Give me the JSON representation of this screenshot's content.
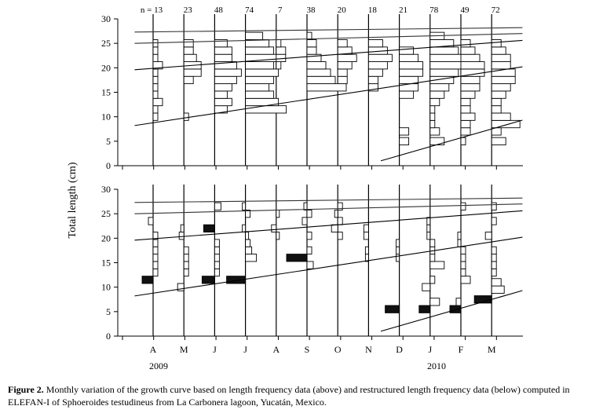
{
  "chart_data": [
    {
      "id": "top",
      "type": "bar",
      "subtype": "length-frequency histograms with ELEFAN growth curves",
      "description_key": "length frequency data",
      "ylabel": "Total length (cm)",
      "ylim": [
        0,
        30
      ],
      "yticks": [
        "0",
        "5",
        "10",
        "15",
        "20",
        "25",
        "30"
      ],
      "months": [
        "A",
        "M",
        "J",
        "J",
        "A",
        "S",
        "O",
        "N",
        "D",
        "J",
        "F",
        "M"
      ],
      "sample_sizes": [
        "n = 13",
        "23",
        "48",
        "74",
        "7",
        "38",
        "20",
        "18",
        "21",
        "78",
        "49",
        "72"
      ],
      "bin_width_cm": 1.5,
      "bars": [
        [
          [
            10,
            0.15
          ],
          [
            11.5,
            0.15
          ],
          [
            13,
            0.3
          ],
          [
            14.5,
            0.15
          ],
          [
            16,
            0.15
          ],
          [
            17.5,
            0.15
          ],
          [
            19,
            0.15
          ],
          [
            20.5,
            0.3
          ],
          [
            22,
            0.15
          ],
          [
            23.5,
            0.15
          ],
          [
            25,
            0.15
          ]
        ],
        [
          [
            10,
            0.15
          ],
          [
            17.5,
            0.3
          ],
          [
            19,
            0.55
          ],
          [
            20.5,
            0.55
          ],
          [
            22,
            0.4
          ],
          [
            23.5,
            0.3
          ],
          [
            25,
            0.3
          ]
        ],
        [
          [
            11.5,
            0.4
          ],
          [
            13,
            0.55
          ],
          [
            14.5,
            0.4
          ],
          [
            16,
            0.55
          ],
          [
            17.5,
            0.7
          ],
          [
            19,
            0.85
          ],
          [
            20.5,
            0.7
          ],
          [
            22,
            0.55
          ],
          [
            23.5,
            0.55
          ],
          [
            25,
            0.4
          ]
        ],
        [
          [
            11.5,
            1.3
          ],
          [
            13,
            1.05
          ],
          [
            14.5,
            0.9
          ],
          [
            16,
            0.75
          ],
          [
            17.5,
            0.9
          ],
          [
            19,
            1.05
          ],
          [
            20.5,
            0.9
          ],
          [
            22,
            1.05
          ],
          [
            23.5,
            0.9
          ],
          [
            25,
            0.75
          ],
          [
            26.5,
            0.55
          ]
        ],
        [
          [
            20.5,
            0.15
          ],
          [
            22,
            0.3
          ],
          [
            23.5,
            0.3
          ],
          [
            25,
            0.15
          ]
        ],
        [
          [
            16,
            1.25
          ],
          [
            17.5,
            0.9
          ],
          [
            19,
            0.75
          ],
          [
            20.5,
            0.6
          ],
          [
            22,
            0.45
          ],
          [
            23.5,
            0.3
          ],
          [
            25,
            0.3
          ],
          [
            26.5,
            0.15
          ]
        ],
        [
          [
            17.5,
            0.3
          ],
          [
            19,
            0.3
          ],
          [
            20.5,
            0.45
          ],
          [
            22,
            0.6
          ],
          [
            23.5,
            0.45
          ],
          [
            25,
            0.3
          ]
        ],
        [
          [
            16,
            0.3
          ],
          [
            17.5,
            0.3
          ],
          [
            19,
            0.45
          ],
          [
            20.5,
            0.6
          ],
          [
            22,
            0.75
          ],
          [
            23.5,
            0.6
          ],
          [
            25,
            0.45
          ]
        ],
        [
          [
            5,
            0.3
          ],
          [
            7,
            0.3
          ],
          [
            14.5,
            0.45
          ],
          [
            16,
            0.6
          ],
          [
            17.5,
            0.6
          ],
          [
            19,
            0.75
          ],
          [
            20.5,
            0.75
          ],
          [
            22,
            0.6
          ],
          [
            23.5,
            0.45
          ]
        ],
        [
          [
            5,
            0.45
          ],
          [
            7,
            0.3
          ],
          [
            8.5,
            0.15
          ],
          [
            10,
            0.15
          ],
          [
            11.5,
            0.15
          ],
          [
            13,
            0.3
          ],
          [
            14.5,
            0.45
          ],
          [
            16,
            0.6
          ],
          [
            17.5,
            0.75
          ],
          [
            19,
            0.9
          ],
          [
            20.5,
            1.05
          ],
          [
            22,
            1.05
          ],
          [
            23.5,
            0.9
          ],
          [
            25,
            0.75
          ],
          [
            26.5,
            0.45
          ]
        ],
        [
          [
            5,
            0.15
          ],
          [
            7,
            0.3
          ],
          [
            8.5,
            0.3
          ],
          [
            10,
            0.45
          ],
          [
            11.5,
            0.3
          ],
          [
            13,
            0.3
          ],
          [
            14.5,
            0.45
          ],
          [
            16,
            0.6
          ],
          [
            17.5,
            0.6
          ],
          [
            19,
            0.75
          ],
          [
            20.5,
            0.75
          ],
          [
            22,
            0.6
          ],
          [
            23.5,
            0.45
          ],
          [
            25,
            0.3
          ]
        ],
        [
          [
            5,
            0.45
          ],
          [
            7,
            0.3
          ],
          [
            8.5,
            0.9
          ],
          [
            10,
            0.6
          ],
          [
            11.5,
            0.3
          ],
          [
            13,
            0.3
          ],
          [
            14.5,
            0.45
          ],
          [
            16,
            0.6
          ],
          [
            17.5,
            0.75
          ],
          [
            19,
            0.75
          ],
          [
            20.5,
            0.6
          ],
          [
            22,
            0.6
          ],
          [
            23.5,
            0.45
          ],
          [
            25,
            0.3
          ]
        ]
      ],
      "growth_curves": [
        {
          "x": [
            -0.6,
            12
          ],
          "y": [
            27.3,
            28.2
          ]
        },
        {
          "x": [
            -0.6,
            12
          ],
          "y": [
            25.0,
            27.0
          ]
        },
        {
          "x": [
            -0.6,
            12
          ],
          "y": [
            19.6,
            25.6
          ]
        },
        {
          "x": [
            -0.6,
            12
          ],
          "y": [
            8.2,
            20.2
          ]
        },
        {
          "x": [
            7.4,
            12
          ],
          "y": [
            1.0,
            9.3
          ]
        }
      ]
    },
    {
      "id": "bottom",
      "type": "bar",
      "subtype": "restructured length-frequency with ELEFAN growth curves",
      "description_key": "restructured length frequency data",
      "ylabel": "Total length (cm)",
      "ylim": [
        0,
        30
      ],
      "yticks": [
        "0",
        "5",
        "10",
        "15",
        "20",
        "25",
        "30"
      ],
      "months": [
        "A",
        "M",
        "J",
        "J",
        "A",
        "S",
        "O",
        "N",
        "D",
        "J",
        "F",
        "M"
      ],
      "bin_width_cm": 1.5,
      "bars": [
        [
          [
            11.5,
            -0.35
          ],
          [
            13,
            0.15
          ],
          [
            14.5,
            0.15
          ],
          [
            16,
            0.15
          ],
          [
            17.5,
            0.15
          ],
          [
            19,
            0.15
          ],
          [
            20.5,
            0.15
          ],
          [
            23.5,
            -0.15
          ]
        ],
        [
          [
            10,
            -0.2
          ],
          [
            13,
            0.15
          ],
          [
            14.5,
            0.15
          ],
          [
            16,
            0.15
          ],
          [
            17.5,
            0.15
          ],
          [
            20.5,
            -0.15
          ],
          [
            22,
            -0.1
          ]
        ],
        [
          [
            11.5,
            -0.4
          ],
          [
            13,
            0.15
          ],
          [
            14.5,
            0.15
          ],
          [
            16,
            0.15
          ],
          [
            17.5,
            0.15
          ],
          [
            19,
            0.15
          ],
          [
            22,
            -0.35
          ],
          [
            26.5,
            0.2
          ]
        ],
        [
          [
            11.5,
            -0.6
          ],
          [
            16,
            0.35
          ],
          [
            17.5,
            0.2
          ],
          [
            19,
            0.15
          ],
          [
            20.5,
            0.1
          ],
          [
            22,
            -0.1
          ],
          [
            25,
            0.15
          ],
          [
            26.5,
            -0.1
          ]
        ],
        [
          [
            20.5,
            0.1
          ],
          [
            22,
            -0.15
          ],
          [
            25,
            0.1
          ]
        ],
        [
          [
            16,
            -0.65
          ],
          [
            14.5,
            0.2
          ],
          [
            17.5,
            0.15
          ],
          [
            20.5,
            0.15
          ],
          [
            23.5,
            -0.15
          ],
          [
            25,
            0.15
          ],
          [
            26.5,
            -0.1
          ]
        ],
        [
          [
            20.5,
            0.15
          ],
          [
            22,
            -0.2
          ],
          [
            23.5,
            0.15
          ],
          [
            26.5,
            0.15
          ],
          [
            25,
            -0.1
          ]
        ],
        [
          [
            16,
            -0.1
          ],
          [
            17.5,
            -0.1
          ],
          [
            20.5,
            -0.15
          ],
          [
            22,
            -0.15
          ]
        ],
        [
          [
            5.5,
            -0.45
          ],
          [
            16,
            -0.1
          ],
          [
            17.5,
            -0.1
          ],
          [
            19,
            -0.1
          ]
        ],
        [
          [
            5.5,
            -0.35
          ],
          [
            7,
            0.3
          ],
          [
            10,
            -0.25
          ],
          [
            11.5,
            0.15
          ],
          [
            14.5,
            0.45
          ],
          [
            16,
            0.15
          ],
          [
            17.5,
            0.15
          ],
          [
            19,
            0.15
          ],
          [
            20.5,
            -0.1
          ],
          [
            22,
            -0.1
          ],
          [
            23.5,
            -0.1
          ]
        ],
        [
          [
            5.5,
            -0.35
          ],
          [
            7,
            -0.15
          ],
          [
            11.5,
            0.3
          ],
          [
            13,
            0.15
          ],
          [
            14.5,
            0.15
          ],
          [
            16,
            0.15
          ],
          [
            17.5,
            0.15
          ],
          [
            19,
            -0.1
          ],
          [
            20.5,
            -0.1
          ],
          [
            26.5,
            0.15
          ]
        ],
        [
          [
            7.5,
            -0.55
          ],
          [
            9.5,
            0.4
          ],
          [
            11,
            0.3
          ],
          [
            13,
            0.15
          ],
          [
            14.5,
            0.15
          ],
          [
            16,
            0.15
          ],
          [
            17.5,
            0.15
          ],
          [
            20.5,
            -0.2
          ],
          [
            23.5,
            0.15
          ],
          [
            26.5,
            0.15
          ]
        ]
      ],
      "growth_curves": [
        {
          "x": [
            -0.6,
            12
          ],
          "y": [
            27.3,
            28.2
          ]
        },
        {
          "x": [
            -0.6,
            12
          ],
          "y": [
            25.0,
            27.0
          ]
        },
        {
          "x": [
            -0.6,
            12
          ],
          "y": [
            19.6,
            25.6
          ]
        },
        {
          "x": [
            -0.6,
            12
          ],
          "y": [
            8.2,
            20.2
          ]
        },
        {
          "x": [
            7.4,
            12
          ],
          "y": [
            1.0,
            9.3
          ]
        }
      ]
    }
  ],
  "ylabel": "Total length (cm)",
  "year_labels": [
    "2009",
    "2010"
  ],
  "caption": {
    "bold": "Figure 2.",
    "text": " Monthly variation of the growth curve based on length frequency data (above) and restructured length frequency data (below) computed in ELEFAN-I of Sphoeroides testudineus from La Carbonera lagoon, Yucatán, Mexico."
  }
}
